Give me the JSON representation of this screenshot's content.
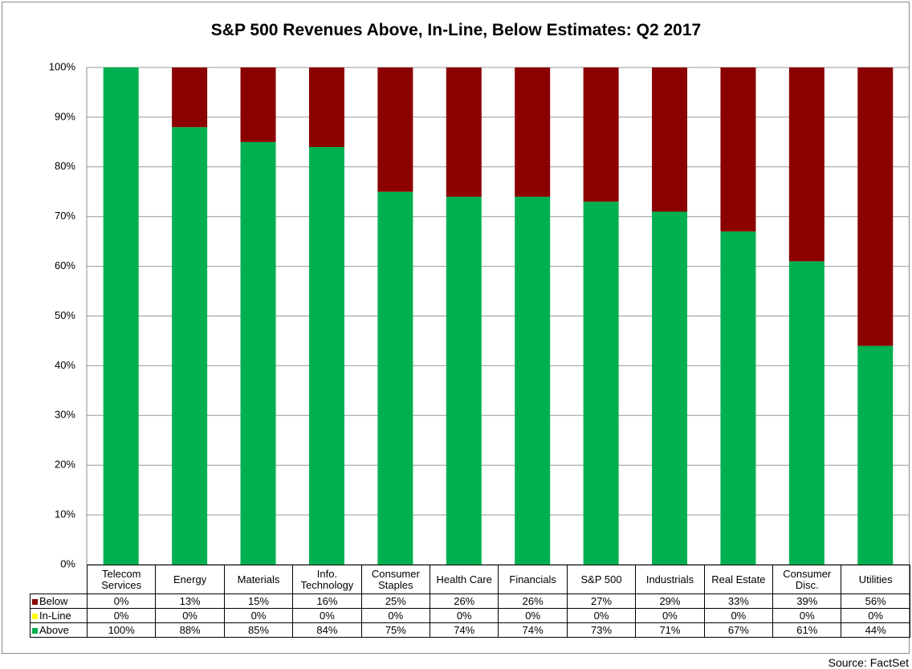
{
  "chart_data": {
    "type": "stacked_bar",
    "title": "S&P 500 Revenues Above, In-Line, Below Estimates: Q2 2017",
    "source": "Source: FactSet",
    "categories": [
      "Telecom Services",
      "Energy",
      "Materials",
      "Info. Technology",
      "Consumer Staples",
      "Health Care",
      "Financials",
      "S&P 500",
      "Industrials",
      "Real Estate",
      "Consumer Disc.",
      "Utilities"
    ],
    "series": [
      {
        "name": "Below",
        "color": "#8b0000",
        "values": [
          0,
          13,
          15,
          16,
          25,
          26,
          26,
          27,
          29,
          33,
          39,
          56
        ],
        "value_labels": [
          "0%",
          "13%",
          "15%",
          "16%",
          "25%",
          "26%",
          "26%",
          "27%",
          "29%",
          "33%",
          "39%",
          "56%"
        ]
      },
      {
        "name": "In-Line",
        "color": "#ffff00",
        "values": [
          0,
          0,
          0,
          0,
          0,
          0,
          0,
          0,
          0,
          0,
          0,
          0
        ],
        "value_labels": [
          "0%",
          "0%",
          "0%",
          "0%",
          "0%",
          "0%",
          "0%",
          "0%",
          "0%",
          "0%",
          "0%",
          "0%"
        ]
      },
      {
        "name": "Above",
        "color": "#00b050",
        "values": [
          100,
          88,
          85,
          84,
          75,
          74,
          74,
          73,
          71,
          67,
          61,
          44
        ],
        "value_labels": [
          "100%",
          "88%",
          "85%",
          "84%",
          "75%",
          "74%",
          "74%",
          "73%",
          "71%",
          "67%",
          "61%",
          "44%"
        ]
      }
    ],
    "ylim": [
      0,
      100
    ],
    "yticks": [
      {
        "value": 0,
        "label": "0%"
      },
      {
        "value": 10,
        "label": "10%"
      },
      {
        "value": 20,
        "label": "20%"
      },
      {
        "value": 30,
        "label": "30%"
      },
      {
        "value": 40,
        "label": "40%"
      },
      {
        "value": 50,
        "label": "50%"
      },
      {
        "value": 60,
        "label": "60%"
      },
      {
        "value": 70,
        "label": "70%"
      },
      {
        "value": 80,
        "label": "80%"
      },
      {
        "value": 90,
        "label": "90%"
      },
      {
        "value": 100,
        "label": "100%"
      }
    ],
    "grid": true
  }
}
